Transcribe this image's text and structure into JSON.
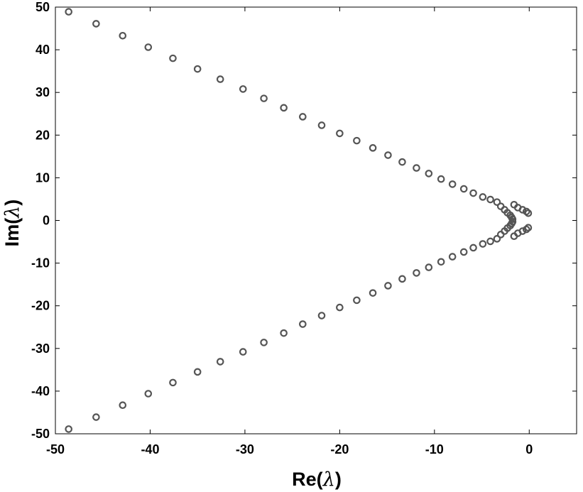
{
  "chart_data": {
    "type": "scatter",
    "title": "",
    "xlabel_main": "Re(",
    "xlabel_symbol": "λ",
    "xlabel_close": ")",
    "ylabel_main": "Im(",
    "ylabel_symbol": "λ",
    "ylabel_close": ")",
    "xlim": [
      -50,
      5
    ],
    "ylim": [
      -50,
      50
    ],
    "xticks": [
      -50,
      -40,
      -30,
      -20,
      -10,
      0
    ],
    "yticks": [
      50,
      40,
      30,
      20,
      10,
      0,
      -10,
      -20,
      -30,
      -40,
      -50
    ],
    "grid": false,
    "legend": "none",
    "marker_color": "#555555",
    "series": [
      {
        "points": [
          [
            -48.6,
            48.9
          ],
          [
            -45.7,
            46.1
          ],
          [
            -42.9,
            43.3
          ],
          [
            -40.2,
            40.6
          ],
          [
            -37.6,
            38.0
          ],
          [
            -35.0,
            35.5
          ],
          [
            -32.6,
            33.1
          ],
          [
            -30.2,
            30.8
          ],
          [
            -28.0,
            28.6
          ],
          [
            -25.9,
            26.4
          ],
          [
            -23.9,
            24.3
          ],
          [
            -21.9,
            22.3
          ],
          [
            -20.0,
            20.4
          ],
          [
            -18.2,
            18.7
          ],
          [
            -16.5,
            17.0
          ],
          [
            -14.9,
            15.3
          ],
          [
            -13.4,
            13.7
          ],
          [
            -11.9,
            12.3
          ],
          [
            -10.6,
            11.0
          ],
          [
            -9.3,
            9.7
          ],
          [
            -8.1,
            8.5
          ],
          [
            -6.9,
            7.4
          ],
          [
            -5.9,
            6.4
          ],
          [
            -4.9,
            5.5
          ],
          [
            -4.1,
            4.9
          ],
          [
            -3.4,
            4.3
          ],
          [
            -3.0,
            3.3
          ],
          [
            -2.6,
            2.5
          ],
          [
            -2.3,
            1.8
          ],
          [
            -2.0,
            1.2
          ],
          [
            -1.85,
            0.7
          ],
          [
            -1.75,
            0.3
          ],
          [
            -1.6,
            3.7
          ],
          [
            -1.2,
            3.0
          ],
          [
            -0.7,
            2.5
          ],
          [
            -0.3,
            2.1
          ],
          [
            -0.1,
            1.7
          ],
          [
            -48.6,
            -48.9
          ],
          [
            -45.7,
            -46.1
          ],
          [
            -42.9,
            -43.3
          ],
          [
            -40.2,
            -40.6
          ],
          [
            -37.6,
            -38.0
          ],
          [
            -35.0,
            -35.5
          ],
          [
            -32.6,
            -33.1
          ],
          [
            -30.2,
            -30.8
          ],
          [
            -28.0,
            -28.6
          ],
          [
            -25.9,
            -26.4
          ],
          [
            -23.9,
            -24.3
          ],
          [
            -21.9,
            -22.3
          ],
          [
            -20.0,
            -20.4
          ],
          [
            -18.2,
            -18.7
          ],
          [
            -16.5,
            -17.0
          ],
          [
            -14.9,
            -15.3
          ],
          [
            -13.4,
            -13.7
          ],
          [
            -11.9,
            -12.3
          ],
          [
            -10.6,
            -11.0
          ],
          [
            -9.3,
            -9.7
          ],
          [
            -8.1,
            -8.5
          ],
          [
            -6.9,
            -7.4
          ],
          [
            -5.9,
            -6.4
          ],
          [
            -4.9,
            -5.5
          ],
          [
            -4.1,
            -4.9
          ],
          [
            -3.4,
            -4.3
          ],
          [
            -3.0,
            -3.3
          ],
          [
            -2.6,
            -2.5
          ],
          [
            -2.3,
            -1.8
          ],
          [
            -2.0,
            -1.2
          ],
          [
            -1.85,
            -0.7
          ],
          [
            -1.75,
            -0.3
          ],
          [
            -1.6,
            -3.7
          ],
          [
            -1.2,
            -3.0
          ],
          [
            -0.7,
            -2.5
          ],
          [
            -0.3,
            -2.1
          ],
          [
            -0.1,
            -1.7
          ]
        ]
      }
    ]
  }
}
